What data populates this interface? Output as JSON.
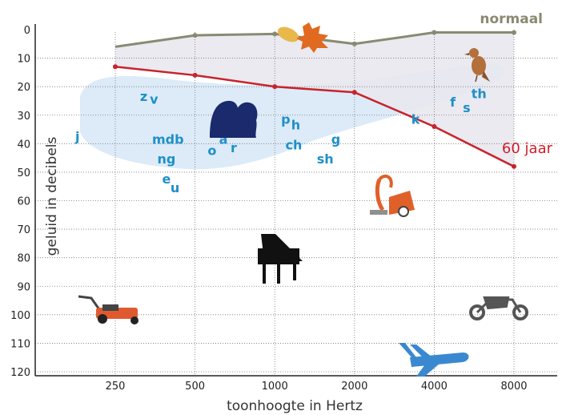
{
  "chart_data": {
    "type": "line",
    "x_tick_labels": [
      "250",
      "500",
      "1000",
      "2000",
      "4000",
      "8000"
    ],
    "x": [
      250,
      500,
      1000,
      2000,
      4000,
      8000
    ],
    "y_tick_labels": [
      "0",
      "10",
      "20",
      "30",
      "40",
      "50",
      "60",
      "70",
      "80",
      "90",
      "100",
      "110",
      "120"
    ],
    "xlabel": "toonhoogte in Hertz",
    "ylabel": "geluid in decibels",
    "x_scale": "log",
    "y_inverted": true,
    "ylim": [
      0,
      120
    ],
    "grid": "dotted",
    "series": [
      {
        "name": "normaal",
        "color": "#8a8a72",
        "values": [
          6,
          2,
          1.5,
          5,
          1,
          1
        ]
      },
      {
        "name": "60 jaar",
        "color": "#c8232c",
        "values": [
          13,
          16,
          20,
          22,
          34,
          48
        ]
      }
    ],
    "phonemes": [
      {
        "text": "j",
        "x": 180,
        "y": 39
      },
      {
        "text": "z",
        "x": 320,
        "y": 25
      },
      {
        "text": "v",
        "x": 350,
        "y": 26
      },
      {
        "text": "mdb",
        "x": 395,
        "y": 40
      },
      {
        "text": "ng",
        "x": 390,
        "y": 47
      },
      {
        "text": "e",
        "x": 390,
        "y": 54
      },
      {
        "text": "u",
        "x": 420,
        "y": 57
      },
      {
        "text": "i",
        "x": 580,
        "y": 36
      },
      {
        "text": "a",
        "x": 640,
        "y": 40
      },
      {
        "text": "o",
        "x": 580,
        "y": 44
      },
      {
        "text": "r",
        "x": 700,
        "y": 43
      },
      {
        "text": "p",
        "x": 1100,
        "y": 33
      },
      {
        "text": "h",
        "x": 1200,
        "y": 35
      },
      {
        "text": "ch",
        "x": 1180,
        "y": 42
      },
      {
        "text": "g",
        "x": 1700,
        "y": 40
      },
      {
        "text": "sh",
        "x": 1550,
        "y": 47
      },
      {
        "text": "k",
        "x": 3400,
        "y": 33
      },
      {
        "text": "f",
        "x": 4700,
        "y": 27
      },
      {
        "text": "s",
        "x": 5300,
        "y": 29
      },
      {
        "text": "th",
        "x": 5900,
        "y": 24
      }
    ],
    "colors": {
      "speech_band": "#dcebf7",
      "loss_area": "#ececf0",
      "phoneme_text": "#1f8fc9",
      "silhouette": "#1a2a6c"
    },
    "icons": [
      "leaves-icon",
      "bird-icon",
      "vacuum-cleaner-icon",
      "piano-icon",
      "lawnmower-icon",
      "motorcycle-icon",
      "airplane-icon",
      "faces-silhouette-icon"
    ]
  }
}
